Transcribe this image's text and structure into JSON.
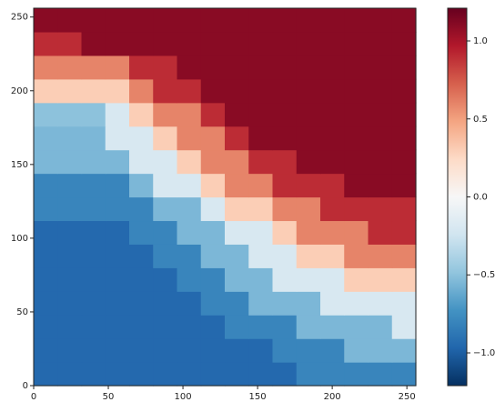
{
  "chart_data": {
    "type": "heatmap",
    "x": [
      8,
      24,
      40,
      56,
      72,
      88,
      104,
      120,
      136,
      152,
      168,
      184,
      200,
      216,
      232,
      248
    ],
    "y": [
      8,
      24,
      40,
      56,
      72,
      88,
      104,
      120,
      136,
      152,
      168,
      184,
      200,
      216,
      232,
      248
    ],
    "z": [
      [
        -0.95,
        -0.95,
        -0.95,
        -0.95,
        -0.95,
        -0.95,
        -0.95,
        -0.95,
        -0.95,
        -0.95,
        -0.95,
        -0.8,
        -0.8,
        -0.8,
        -0.8,
        -0.8
      ],
      [
        -0.95,
        -0.95,
        -0.95,
        -0.95,
        -0.95,
        -0.95,
        -0.95,
        -0.95,
        -0.95,
        -0.95,
        -0.8,
        -0.8,
        -0.8,
        -0.55,
        -0.55,
        -0.55
      ],
      [
        -0.95,
        -0.95,
        -0.95,
        -0.95,
        -0.95,
        -0.95,
        -0.95,
        -0.95,
        -0.8,
        -0.8,
        -0.8,
        -0.55,
        -0.55,
        -0.55,
        -0.55,
        -0.2
      ],
      [
        -0.95,
        -0.95,
        -0.95,
        -0.95,
        -0.95,
        -0.95,
        -0.95,
        -0.8,
        -0.8,
        -0.55,
        -0.55,
        -0.55,
        -0.2,
        -0.2,
        -0.2,
        -0.2
      ],
      [
        -0.95,
        -0.95,
        -0.95,
        -0.95,
        -0.95,
        -0.95,
        -0.8,
        -0.8,
        -0.55,
        -0.55,
        -0.2,
        -0.2,
        -0.2,
        0.3,
        0.3,
        0.3
      ],
      [
        -0.95,
        -0.95,
        -0.95,
        -0.95,
        -0.95,
        -0.8,
        -0.8,
        -0.55,
        -0.55,
        -0.2,
        -0.2,
        0.3,
        0.3,
        0.6,
        0.6,
        0.6
      ],
      [
        -0.95,
        -0.95,
        -0.95,
        -0.95,
        -0.8,
        -0.8,
        -0.55,
        -0.55,
        -0.2,
        -0.2,
        0.3,
        0.6,
        0.6,
        0.6,
        0.9,
        0.9
      ],
      [
        -0.8,
        -0.8,
        -0.8,
        -0.8,
        -0.8,
        -0.55,
        -0.55,
        -0.2,
        0.3,
        0.3,
        0.6,
        0.6,
        0.9,
        0.9,
        0.9,
        0.9
      ],
      [
        -0.8,
        -0.8,
        -0.8,
        -0.8,
        -0.55,
        -0.2,
        -0.2,
        0.3,
        0.6,
        0.6,
        0.9,
        0.9,
        0.9,
        1.1,
        1.1,
        1.1
      ],
      [
        -0.55,
        -0.55,
        -0.55,
        -0.55,
        -0.2,
        -0.2,
        0.3,
        0.6,
        0.6,
        0.9,
        0.9,
        1.1,
        1.1,
        1.1,
        1.1,
        1.1
      ],
      [
        -0.55,
        -0.55,
        -0.55,
        -0.2,
        -0.2,
        0.3,
        0.6,
        0.6,
        0.9,
        1.1,
        1.1,
        1.1,
        1.1,
        1.1,
        1.1,
        1.1
      ],
      [
        -0.5,
        -0.5,
        -0.5,
        -0.2,
        0.3,
        0.6,
        0.6,
        0.9,
        1.1,
        1.1,
        1.1,
        1.1,
        1.1,
        1.1,
        1.1,
        1.1
      ],
      [
        0.3,
        0.3,
        0.3,
        0.3,
        0.6,
        0.9,
        0.9,
        1.1,
        1.1,
        1.1,
        1.1,
        1.1,
        1.1,
        1.1,
        1.1,
        1.1
      ],
      [
        0.6,
        0.6,
        0.6,
        0.6,
        0.9,
        0.9,
        1.1,
        1.1,
        1.1,
        1.1,
        1.1,
        1.1,
        1.1,
        1.1,
        1.1,
        1.1
      ],
      [
        0.9,
        0.9,
        1.1,
        1.1,
        1.1,
        1.1,
        1.1,
        1.1,
        1.1,
        1.1,
        1.1,
        1.1,
        1.1,
        1.1,
        1.1,
        1.1
      ],
      [
        1.1,
        1.1,
        1.1,
        1.1,
        1.1,
        1.1,
        1.1,
        1.1,
        1.1,
        1.1,
        1.1,
        1.1,
        1.1,
        1.1,
        1.1,
        1.1
      ]
    ],
    "xlim": [
      0,
      256
    ],
    "ylim": [
      0,
      256
    ],
    "xticks": [
      0,
      50,
      100,
      150,
      200,
      250
    ],
    "yticks": [
      0,
      50,
      100,
      150,
      200,
      250
    ],
    "zlim": [
      -1.21,
      1.21
    ],
    "zticks": [
      {
        "value": -1,
        "label": "−1.0"
      },
      {
        "value": -0.5,
        "label": "−0.5"
      },
      {
        "value": 0,
        "label": "0.0"
      },
      {
        "value": 0.5,
        "label": "0.5"
      },
      {
        "value": 1,
        "label": "1.0"
      }
    ],
    "colormap": [
      "#053061",
      "#2166ac",
      "#4393c3",
      "#92c5de",
      "#d1e5f0",
      "#f7f7f7",
      "#fddbc7",
      "#f4a582",
      "#d6604d",
      "#b2182b",
      "#67001f"
    ]
  }
}
